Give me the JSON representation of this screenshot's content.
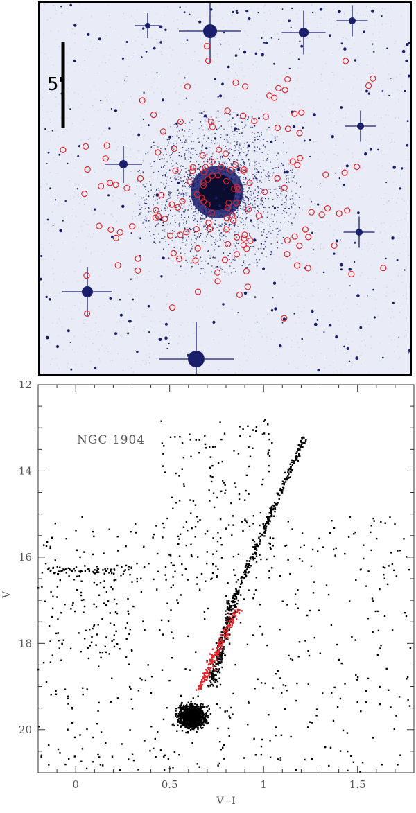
{
  "image_panel": {
    "scale_bar_label": "5'",
    "colors": {
      "background": "#e9ebf6",
      "stars": "#1a1f6b",
      "markers": "#e0262b",
      "frame": "#000000"
    }
  },
  "chart_data": {
    "type": "scatter",
    "title": "",
    "annotation": "NGC 1904",
    "xlabel": "V−I",
    "ylabel": "V",
    "xlim": [
      -0.2,
      1.8
    ],
    "ylim": [
      21,
      12
    ],
    "y_inverted": true,
    "grid": false,
    "legend": "none",
    "x_ticks": [
      0,
      0.5,
      1,
      1.5
    ],
    "x_tick_labels": [
      "0",
      "0.5",
      "1",
      "1.5"
    ],
    "y_ticks": [
      12,
      14,
      16,
      18,
      20
    ],
    "y_tick_labels": [
      "12",
      "14",
      "16",
      "18",
      "20"
    ],
    "series": [
      {
        "color": "#000000",
        "description_points": "approximate centroids of dense regions (field + cluster stars)",
        "points": [
          [
            0.61,
            19.6
          ],
          [
            0.65,
            19.7
          ],
          [
            0.58,
            19.5
          ],
          [
            0.7,
            19.8
          ],
          [
            0.55,
            19.9
          ],
          [
            0.8,
            17.0
          ],
          [
            0.85,
            16.2
          ],
          [
            0.9,
            15.8
          ],
          [
            1.0,
            15.0
          ],
          [
            1.1,
            14.5
          ],
          [
            1.2,
            14.0
          ],
          [
            1.3,
            13.5
          ],
          [
            0.05,
            16.3
          ],
          [
            0.15,
            16.2
          ],
          [
            -0.1,
            16.6
          ],
          [
            0.5,
            14.5
          ],
          [
            0.6,
            13.2
          ],
          [
            0.55,
            12.8
          ]
        ]
      },
      {
        "color": "#e0262b",
        "description_points": "highlighted member stars along the cluster sequence",
        "points": [
          [
            0.62,
            19.1
          ],
          [
            0.7,
            18.9
          ],
          [
            0.75,
            18.5
          ],
          [
            0.78,
            18.2
          ],
          [
            0.82,
            17.8
          ],
          [
            0.85,
            17.5
          ],
          [
            0.88,
            17.2
          ],
          [
            0.8,
            18.6
          ],
          [
            0.9,
            18.0
          ],
          [
            0.86,
            18.4
          ]
        ]
      }
    ]
  }
}
